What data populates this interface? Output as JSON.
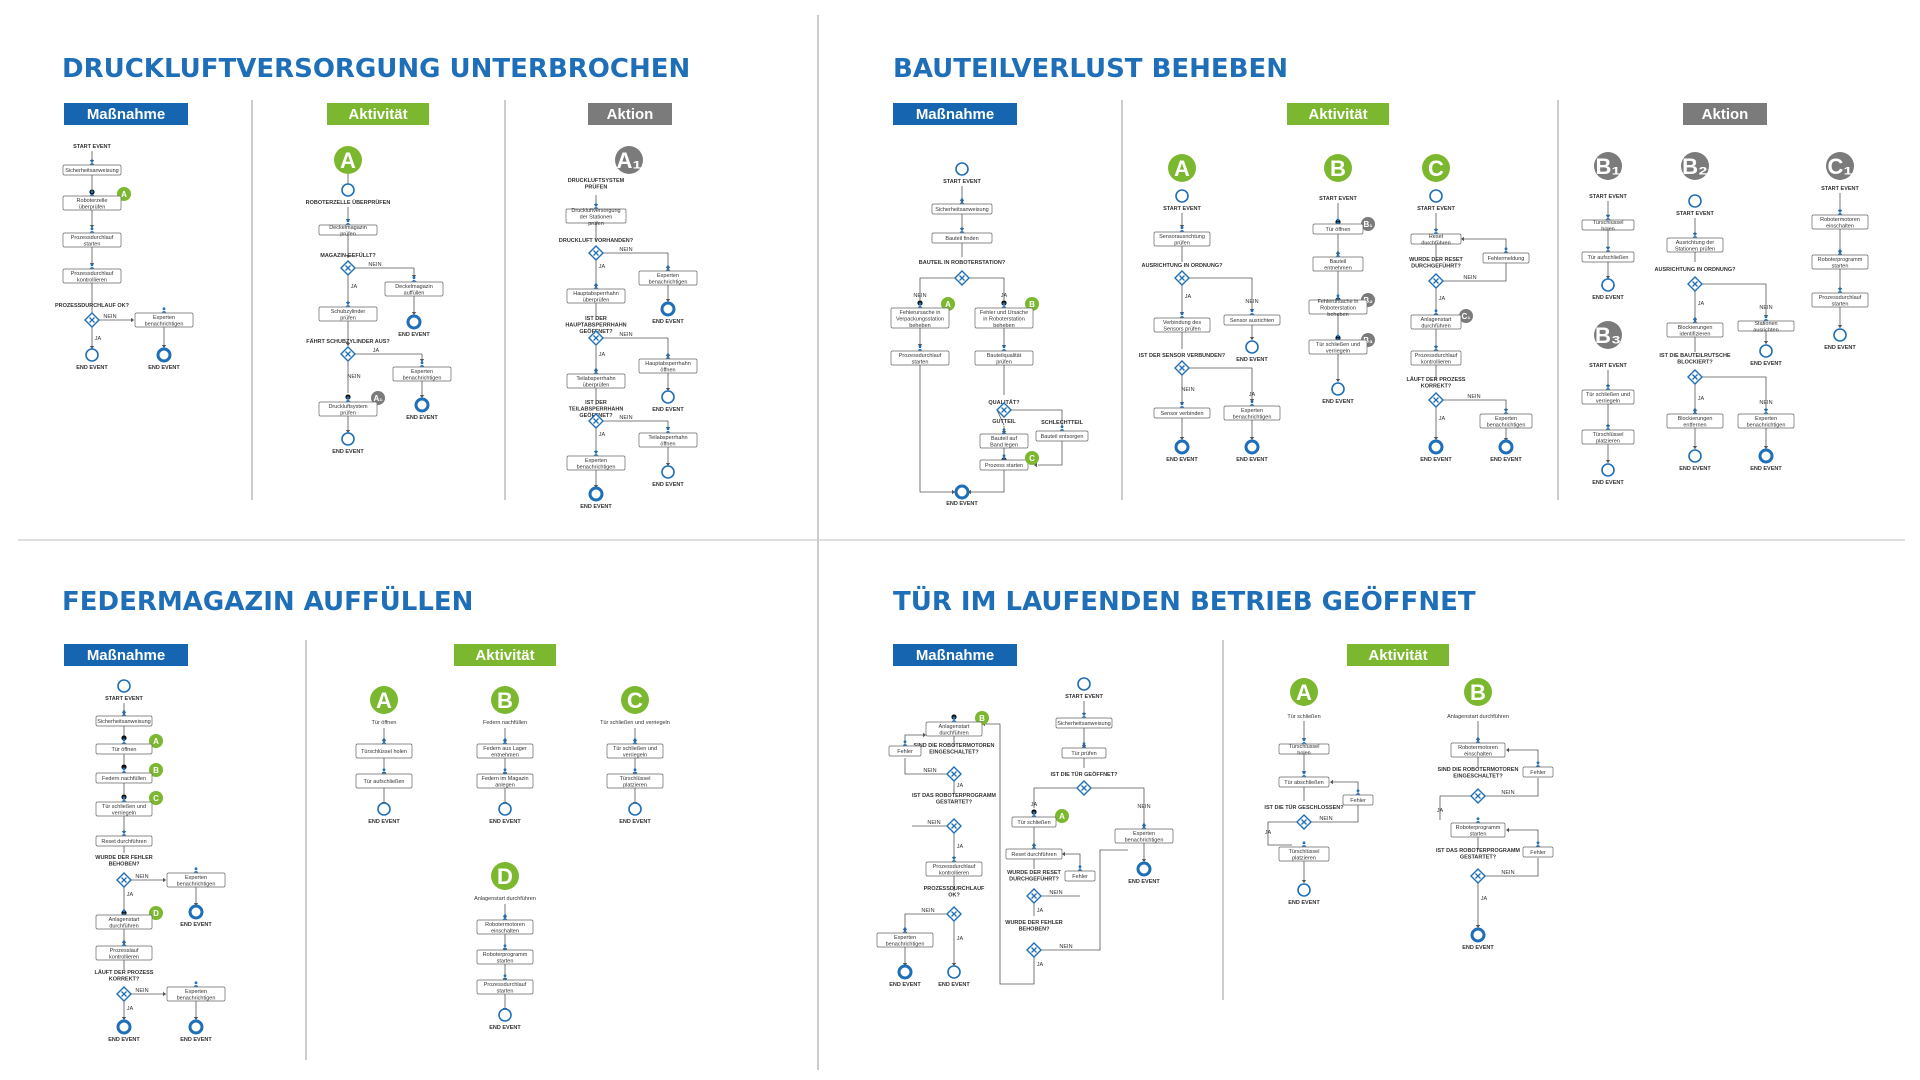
{
  "colors": {
    "blue": "#1565b0",
    "green": "#7cb82f",
    "gray": "#7b7b7b",
    "title": "#1f6fb8",
    "event": "#1f6fb8"
  },
  "labels": {
    "massnahme": "Maßnahme",
    "aktivitaet": "Aktivität",
    "aktion": "Aktion",
    "start_event": "START EVENT",
    "end_event": "END EVENT",
    "ja": "JA",
    "nein": "NEIN"
  },
  "sections": [
    {
      "title": "DRUCKLUFTVERSORGUNG UNTERBROCHEN",
      "massnahme": {
        "boxes": [
          "Sicherheitsanweisung",
          "Roboterzelle überprüfen",
          "Prozessdurchlauf starten",
          "Prozessdurchlauf kontrollieren",
          "Experten benachrichtigen"
        ],
        "gateways": [
          "PROZESSDURCHLAUF OK?"
        ],
        "badges": [
          "A"
        ]
      },
      "aktivitaet": {
        "badge": "A",
        "start": "ROBOTERZELLE ÜBERPRÜFEN",
        "boxes": [
          "Deckelmagazin prüfen",
          "Deckelmagazin auffüllen",
          "Schubzylinder prüfen",
          "Experten benachrichtigen",
          "Druckluftsystem prüfen"
        ],
        "gateways": [
          "MAGAZIN GEFÜLLT?",
          "FÄHRT SCHUBZYLINDER AUS?"
        ],
        "badges": [
          "A₁"
        ]
      },
      "aktion": {
        "badge": "A₁",
        "start": "DRUCKLUFTSYSTEM PRÜFEN",
        "boxes": [
          "Druckluftversorgung der Stationen prüfen",
          "Experten benachrichtigen",
          "Hauptabsperrhahn überprüfen",
          "Hauptabsperrhahn öffnen",
          "Teilabsperrhahn überprüfen",
          "Teilabsperrhahn öffnen",
          "Experten benachrichtigen"
        ],
        "gateways": [
          "DRUCKLUFT VORHANDEN?",
          "IST DER HAUPTABSPERRHAHN GEÖFFNET?",
          "IST DER TEILABSPERRHAHN GEÖFFNET?"
        ]
      }
    },
    {
      "title": "BAUTEILVERLUST BEHEBEN",
      "massnahme": {
        "boxes": [
          "Sicherheitsanweisung",
          "Bauteil finden",
          "Fehlerursache in Verpackungsstation beheben",
          "Fehler und Ursache in Roboterstation beheben",
          "Prozessdurchlauf starten",
          "Bauteilqualität prüfen",
          "Bauteil auf Band legen",
          "Bauteil entsorgen",
          "Prozess starten"
        ],
        "gateways": [
          "BAUTEIL IN ROBOTERSTATION?",
          "QUALITÄT?"
        ],
        "options": [
          "GUTTEIL",
          "SCHLECHTTEIL"
        ],
        "badges": [
          "A",
          "B",
          "C"
        ]
      },
      "aktivitaet": {
        "columns": [
          {
            "badge": "A",
            "boxes": [
              "Sensorausrichtung prüfen",
              "Verbindung des Sensors prüfen",
              "Sensor ausrichten",
              "Sensor verbinden",
              "Experten benachrichtigen"
            ],
            "gateways": [
              "AUSRICHTUNG IN ORDNUNG?",
              "IST DER SENSOR VERBUNDEN?"
            ]
          },
          {
            "badge": "B",
            "boxes": [
              "Tür öffnen",
              "Bauteil entnehmen",
              "Fehlerursache in Roboterstation beheben",
              "Tür schließen und verriegeln"
            ],
            "badges": [
              "B₁",
              "B₂",
              "B₃"
            ]
          },
          {
            "badge": "C",
            "boxes": [
              "Reset durchführen",
              "Fehlermeldung",
              "Anlagenstart durchführen",
              "Prozessdurchlauf kontrollieren",
              "Experten benachrichtigen"
            ],
            "gateways": [
              "WURDE DER RESET DURCHGEFÜHRT?",
              "LÄUFT DER PROZESS KORREKT?"
            ],
            "badges": [
              "C₁"
            ]
          }
        ]
      },
      "aktion": {
        "columns": [
          {
            "badge": "B₁",
            "boxes": [
              "Türschlüssel holen",
              "Tür aufschließen"
            ]
          },
          {
            "badge": "B₂",
            "boxes": [
              "Ausrichtung der Stationen prüfen",
              "Blockierungen identifizieren",
              "Stationen ausrichten",
              "Blockierungen entfernen",
              "Experten benachrichtigen"
            ],
            "gateways": [
              "AUSRICHTUNG IN ORDNUNG?",
              "IST DIE BAUTEILRUTSCHE BLOCKIERT?"
            ]
          },
          {
            "badge": "B₃",
            "boxes": [
              "Tür schließen und verriegeln",
              "Türschlüssel platzieren"
            ]
          },
          {
            "badge": "C₁",
            "boxes": [
              "Robotermotoren einschalten",
              "Roboterprogramm starten",
              "Prozessdurchlauf starten"
            ]
          }
        ]
      }
    },
    {
      "title": "FEDERMAGAZIN AUFFÜLLEN",
      "massnahme": {
        "boxes": [
          "Sicherheitsanweisung",
          "Tür öffnen",
          "Federn nachfüllen",
          "Tür schließen und verriegeln",
          "Reset durchführen",
          "Experten benachrichtigen",
          "Anlagenstart durchführen",
          "Prozesslauf kontrollieren",
          "Experten benachrichtigen"
        ],
        "gateways": [
          "WURDE DER FEHLER BEHOBEN?",
          "LÄUFT DER PROZESS KORREKT?"
        ],
        "badges": [
          "A",
          "B",
          "C",
          "D"
        ]
      },
      "aktivitaet": {
        "columns": [
          {
            "badge": "A",
            "start": "Tür öffnen",
            "boxes": [
              "Türschlüssel holen",
              "Tür aufschließen"
            ]
          },
          {
            "badge": "B",
            "start": "Federn nachfüllen",
            "boxes": [
              "Federn aus Lager entnehmen",
              "Federn im Magazin anlegen"
            ]
          },
          {
            "badge": "C",
            "start": "Tür schließen und verriegeln",
            "boxes": [
              "Tür schließen und verriegeln",
              "Türschlüssel platzieren"
            ]
          },
          {
            "badge": "D",
            "start": "Anlagenstart durchführen",
            "boxes": [
              "Robotermotoren einschalten",
              "Roboterprogramm starten",
              "Prozessdurchlauf starten"
            ]
          }
        ]
      }
    },
    {
      "title": "TÜR IM LAUFENDEN BETRIEB GEÖFFNET",
      "massnahme": {
        "boxes": [
          "Anlagenstart durchführen",
          "Fehler",
          "Prozessdurchlauf kontrollieren",
          "Experten benachrichtigen",
          "Sicherheitsanweisung",
          "Tür prüfen",
          "Tür schließen",
          "Reset durchführen",
          "Fehler",
          "Experten benachrichtigen"
        ],
        "gateways": [
          "SIND DIE ROBOTERMOTOREN EINGESCHALTET?",
          "IST DAS ROBOTERPROGRAMM GESTARTET?",
          "PROZESSDURCHLAUF OK?",
          "IST DIE TÜR GEÖFFNET?",
          "WURDE DER RESET DURCHGEFÜHRT?",
          "WURDE DER FEHLER BEHOBEN?"
        ],
        "badges": [
          "B",
          "A"
        ]
      },
      "aktivitaet": {
        "columns": [
          {
            "badge": "A",
            "start": "Tür schließen",
            "boxes": [
              "Türschlüssel holen",
              "Tür abschließen",
              "Fehler",
              "Türschlüssel platzieren"
            ],
            "gateways": [
              "IST DIE TÜR GESCHLOSSEN?"
            ]
          },
          {
            "badge": "B",
            "start": "Anlagenstart durchführen",
            "boxes": [
              "Robotermotoren einschalten",
              "Fehler",
              "Roboterprogramm starten",
              "Fehler"
            ],
            "gateways": [
              "SIND DIE ROBOTERMOTOREN EINGESCHALTET?",
              "IST DAS ROBOTERPROGRAMM GESTARTET?"
            ]
          }
        ]
      }
    }
  ]
}
